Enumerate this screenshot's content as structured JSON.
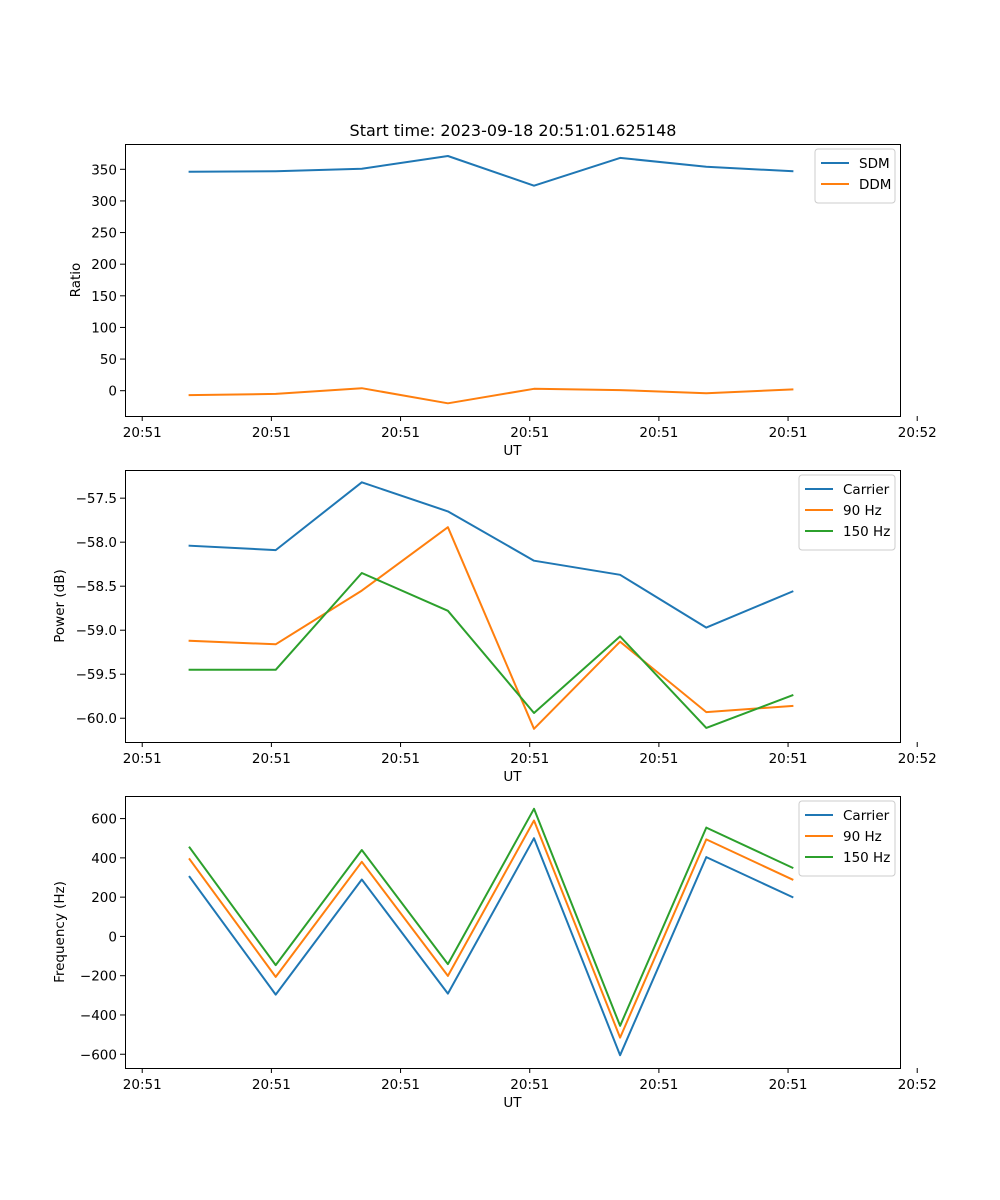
{
  "figure_title": "Start time: 2023-09-18 20:51:01.625148",
  "chart_data": [
    {
      "type": "line",
      "title": "Start time: 2023-09-18 20:51:01.625148",
      "xlabel": "UT",
      "ylabel": "Ratio",
      "xlim": [
        0,
        9
      ],
      "ylim": [
        -40,
        390
      ],
      "x": [
        0.75,
        1.75,
        2.75,
        3.75,
        4.75,
        5.75,
        6.75,
        7.75
      ],
      "x_ticks": [
        0.2,
        1.7,
        3.2,
        4.7,
        6.2,
        7.7,
        9.2
      ],
      "x_tick_labels": [
        "20:51",
        "20:51",
        "20:51",
        "20:51",
        "20:51",
        "20:51",
        "20:52"
      ],
      "y_ticks": [
        0,
        50,
        100,
        150,
        200,
        250,
        300,
        350
      ],
      "y_tick_labels": [
        "0",
        "50",
        "100",
        "150",
        "200",
        "250",
        "300",
        "350"
      ],
      "legend_position": "upper right",
      "series": [
        {
          "name": "SDM",
          "color": "#1f77b4",
          "values": [
            346,
            347,
            351,
            371,
            324,
            368,
            354,
            347
          ]
        },
        {
          "name": "DDM",
          "color": "#ff7f0e",
          "values": [
            -7,
            -5,
            4,
            -20,
            3,
            1,
            -4,
            2
          ]
        }
      ]
    },
    {
      "type": "line",
      "title": "",
      "xlabel": "UT",
      "ylabel": "Power (dB)",
      "xlim": [
        0,
        9
      ],
      "ylim": [
        -60.27,
        -57.18
      ],
      "x": [
        0.75,
        1.75,
        2.75,
        3.75,
        4.75,
        5.75,
        6.75,
        7.75
      ],
      "x_ticks": [
        0.2,
        1.7,
        3.2,
        4.7,
        6.2,
        7.7,
        9.2
      ],
      "x_tick_labels": [
        "20:51",
        "20:51",
        "20:51",
        "20:51",
        "20:51",
        "20:51",
        "20:52"
      ],
      "y_ticks": [
        -60.0,
        -59.5,
        -59.0,
        -58.5,
        -58.0,
        -57.5
      ],
      "y_tick_labels": [
        "−60.0",
        "−59.5",
        "−59.0",
        "−58.5",
        "−58.0",
        "−57.5"
      ],
      "legend_position": "upper right",
      "series": [
        {
          "name": "Carrier",
          "color": "#1f77b4",
          "values": [
            -58.04,
            -58.09,
            -57.32,
            -57.65,
            -58.21,
            -58.37,
            -58.97,
            -58.56
          ]
        },
        {
          "name": "90 Hz",
          "color": "#ff7f0e",
          "values": [
            -59.12,
            -59.16,
            -58.55,
            -57.83,
            -60.12,
            -59.13,
            -59.93,
            -59.86
          ]
        },
        {
          "name": "150 Hz",
          "color": "#2ca02c",
          "values": [
            -59.45,
            -59.45,
            -58.35,
            -58.78,
            -59.94,
            -59.07,
            -60.11,
            -59.74
          ]
        }
      ]
    },
    {
      "type": "line",
      "title": "",
      "xlabel": "UT",
      "ylabel": "Frequency (Hz)",
      "xlim": [
        0,
        9
      ],
      "ylim": [
        -670,
        715
      ],
      "x": [
        0.75,
        1.75,
        2.75,
        3.75,
        4.75,
        5.75,
        6.75,
        7.75
      ],
      "x_ticks": [
        0.2,
        1.7,
        3.2,
        4.7,
        6.2,
        7.7,
        9.2
      ],
      "x_tick_labels": [
        "20:51",
        "20:51",
        "20:51",
        "20:51",
        "20:51",
        "20:51",
        "20:52"
      ],
      "y_ticks": [
        -600,
        -400,
        -200,
        0,
        200,
        400,
        600
      ],
      "y_tick_labels": [
        "−600",
        "−400",
        "−200",
        "0",
        "200",
        "400",
        "600"
      ],
      "legend_position": "upper right",
      "series": [
        {
          "name": "Carrier",
          "color": "#1f77b4",
          "values": [
            303,
            -296,
            290,
            -291,
            500,
            -605,
            404,
            200
          ]
        },
        {
          "name": "90 Hz",
          "color": "#ff7f0e",
          "values": [
            393,
            -206,
            380,
            -201,
            590,
            -515,
            494,
            290
          ]
        },
        {
          "name": "150 Hz",
          "color": "#2ca02c",
          "values": [
            453,
            -146,
            440,
            -141,
            650,
            -455,
            554,
            350
          ]
        }
      ]
    }
  ]
}
